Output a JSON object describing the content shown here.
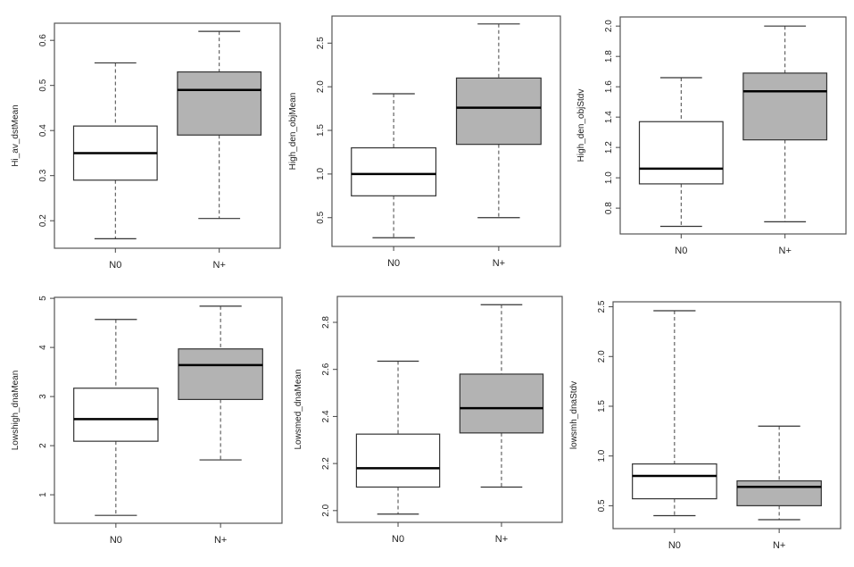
{
  "chart_data": [
    {
      "type": "box",
      "ylabel": "Hi_av_dstMean",
      "categories": [
        "N0",
        "N+"
      ],
      "yticks": [
        "0.2",
        "0.3",
        "0.4",
        "0.5",
        "0.6"
      ],
      "ylim": [
        0.139,
        0.638
      ],
      "series": [
        {
          "name": "N0",
          "min": 0.16,
          "q1": 0.29,
          "median": 0.35,
          "q3": 0.41,
          "max": 0.55,
          "fill": "#ffffff"
        },
        {
          "name": "N+",
          "min": 0.205,
          "q1": 0.39,
          "median": 0.49,
          "q3": 0.53,
          "max": 0.62,
          "fill": "#b3b3b3"
        }
      ]
    },
    {
      "type": "box",
      "ylabel": "High_den_objMean",
      "categories": [
        "N0",
        "N+"
      ],
      "yticks": [
        "0.5",
        "1.0",
        "1.5",
        "2.0",
        "2.5"
      ],
      "ylim": [
        0.17,
        2.81
      ],
      "series": [
        {
          "name": "N0",
          "min": 0.27,
          "q1": 0.75,
          "median": 1.0,
          "q3": 1.3,
          "max": 1.92,
          "fill": "#ffffff"
        },
        {
          "name": "N+",
          "min": 0.5,
          "q1": 1.34,
          "median": 1.76,
          "q3": 2.1,
          "max": 2.72,
          "fill": "#b3b3b3"
        }
      ]
    },
    {
      "type": "box",
      "ylabel": "High_den_objStdv",
      "categories": [
        "N0",
        "N+"
      ],
      "yticks": [
        "0.8",
        "1.0",
        "1.2",
        "1.4",
        "1.6",
        "1.8",
        "2.0"
      ],
      "ylim": [
        0.63,
        2.06
      ],
      "series": [
        {
          "name": "N0",
          "min": 0.68,
          "q1": 0.96,
          "median": 1.06,
          "q3": 1.37,
          "max": 1.66,
          "fill": "#ffffff"
        },
        {
          "name": "N+",
          "min": 0.71,
          "q1": 1.25,
          "median": 1.57,
          "q3": 1.69,
          "max": 2.0,
          "fill": "#b3b3b3"
        }
      ]
    },
    {
      "type": "box",
      "ylabel": "Lowshigh_dnaMean",
      "categories": [
        "N0",
        "N+"
      ],
      "yticks": [
        "1",
        "2",
        "3",
        "4",
        "5"
      ],
      "ylim": [
        0.42,
        5.02
      ],
      "series": [
        {
          "name": "N0",
          "min": 0.58,
          "q1": 2.09,
          "median": 2.54,
          "q3": 3.17,
          "max": 4.57,
          "fill": "#ffffff"
        },
        {
          "name": "N+",
          "min": 1.71,
          "q1": 2.94,
          "median": 3.64,
          "q3": 3.97,
          "max": 4.84,
          "fill": "#b3b3b3"
        }
      ]
    },
    {
      "type": "box",
      "ylabel": "Lowsmed_dnaMean",
      "categories": [
        "N0",
        "N+"
      ],
      "yticks": [
        "2.0",
        "2.2",
        "2.4",
        "2.6",
        "2.8"
      ],
      "ylim": [
        1.95,
        2.91
      ],
      "series": [
        {
          "name": "N0",
          "min": 1.985,
          "q1": 2.1,
          "median": 2.18,
          "q3": 2.325,
          "max": 2.635,
          "fill": "#ffffff"
        },
        {
          "name": "N+",
          "min": 2.1,
          "q1": 2.33,
          "median": 2.435,
          "q3": 2.58,
          "max": 2.875,
          "fill": "#b3b3b3"
        }
      ]
    },
    {
      "type": "box",
      "ylabel": "lowsmh_dnaStdv",
      "categories": [
        "N0",
        "N+"
      ],
      "yticks": [
        "0.5",
        "1.0",
        "1.5",
        "2.0",
        "2.5"
      ],
      "ylim": [
        0.27,
        2.55
      ],
      "series": [
        {
          "name": "N0",
          "min": 0.4,
          "q1": 0.57,
          "median": 0.8,
          "q3": 0.92,
          "max": 2.46,
          "fill": "#ffffff"
        },
        {
          "name": "N+",
          "min": 0.36,
          "q1": 0.5,
          "median": 0.69,
          "q3": 0.75,
          "max": 1.3,
          "fill": "#b3b3b3"
        }
      ]
    }
  ]
}
